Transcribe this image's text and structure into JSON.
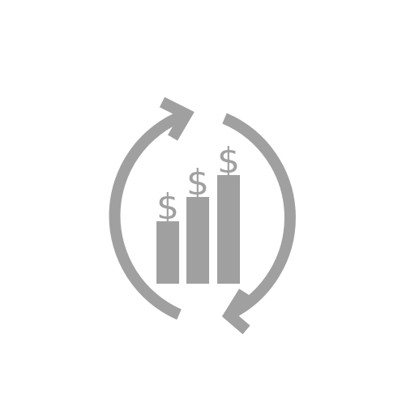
{
  "icon": {
    "name": "recurring-revenue-icon",
    "color": "#a0a0a0",
    "background": "#ffffff",
    "bars": [
      {
        "symbol": "$",
        "level": 0.45
      },
      {
        "symbol": "$",
        "level": 0.63
      },
      {
        "symbol": "$",
        "level": 0.79
      }
    ]
  }
}
